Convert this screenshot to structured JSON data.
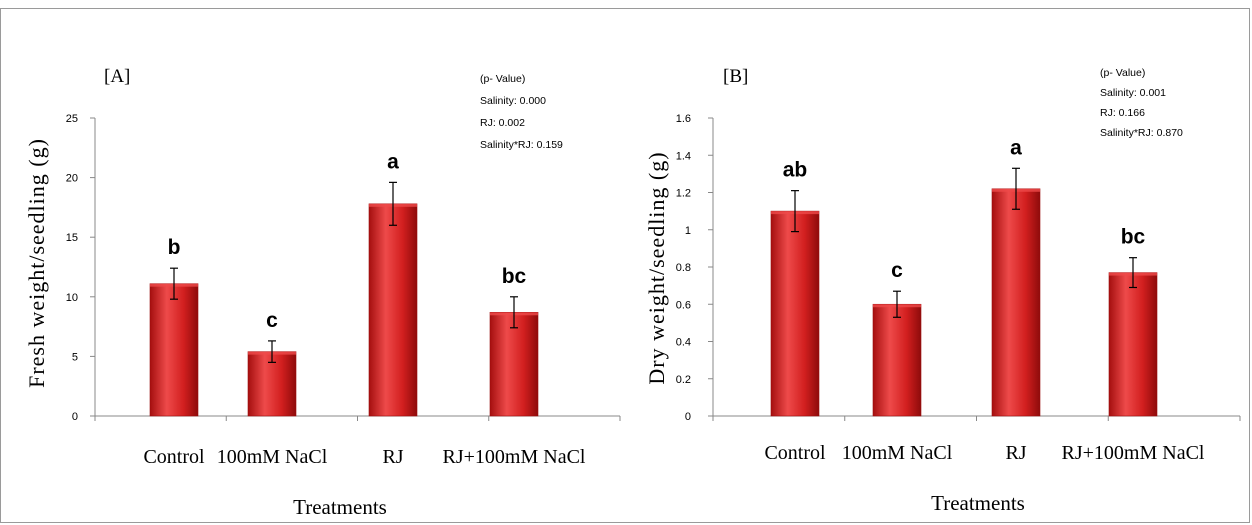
{
  "colors": {
    "bar": "#d21f1f",
    "bar_dark": "#9b0d0d",
    "bar_light": "#ee4a4a",
    "axis": "#888888",
    "text": "#000000"
  },
  "chart_data": [
    {
      "type": "bar",
      "panel_label": "[A]",
      "ylabel": "Fresh weight/seedling (g)",
      "xlabel": "Treatments",
      "categories": [
        "Control",
        "100mM NaCl",
        "RJ",
        "RJ+100mM NaCl"
      ],
      "values": [
        11.1,
        5.4,
        17.8,
        8.7
      ],
      "error": [
        1.3,
        0.9,
        1.8,
        1.3
      ],
      "letters": [
        "b",
        "c",
        "a",
        "bc"
      ],
      "ylim": [
        0,
        25
      ],
      "yticks": [
        0,
        5,
        10,
        15,
        20,
        25
      ],
      "ytick_labels": [
        "0",
        "5",
        "10",
        "15",
        "20",
        "25"
      ],
      "stats": [
        "(p- Value)",
        "Salinity: 0.000",
        "RJ: 0.002",
        "Salinity*RJ: 0.159"
      ],
      "grid": false,
      "legend": "none"
    },
    {
      "type": "bar",
      "panel_label": "[B]",
      "ylabel": "Dry weight/seedling (g)",
      "xlabel": "Treatments",
      "categories": [
        "Control",
        "100mM NaCl",
        "RJ",
        "RJ+100mM NaCl"
      ],
      "values": [
        1.1,
        0.6,
        1.22,
        0.77
      ],
      "error": [
        0.11,
        0.07,
        0.11,
        0.08
      ],
      "letters": [
        "ab",
        "c",
        "a",
        "bc"
      ],
      "ylim": [
        0,
        1.6
      ],
      "yticks": [
        0,
        0.2,
        0.4,
        0.6,
        0.8,
        1.0,
        1.2,
        1.4,
        1.6
      ],
      "ytick_labels": [
        "0",
        "0.2",
        "0.4",
        "0.6",
        "0.8",
        "1",
        "1.2",
        "1.4",
        "1.6"
      ],
      "stats": [
        "(p- Value)",
        "Salinity: 0.001",
        "RJ: 0.166",
        "Salinity*RJ: 0.870"
      ],
      "grid": false,
      "legend": "none"
    }
  ]
}
